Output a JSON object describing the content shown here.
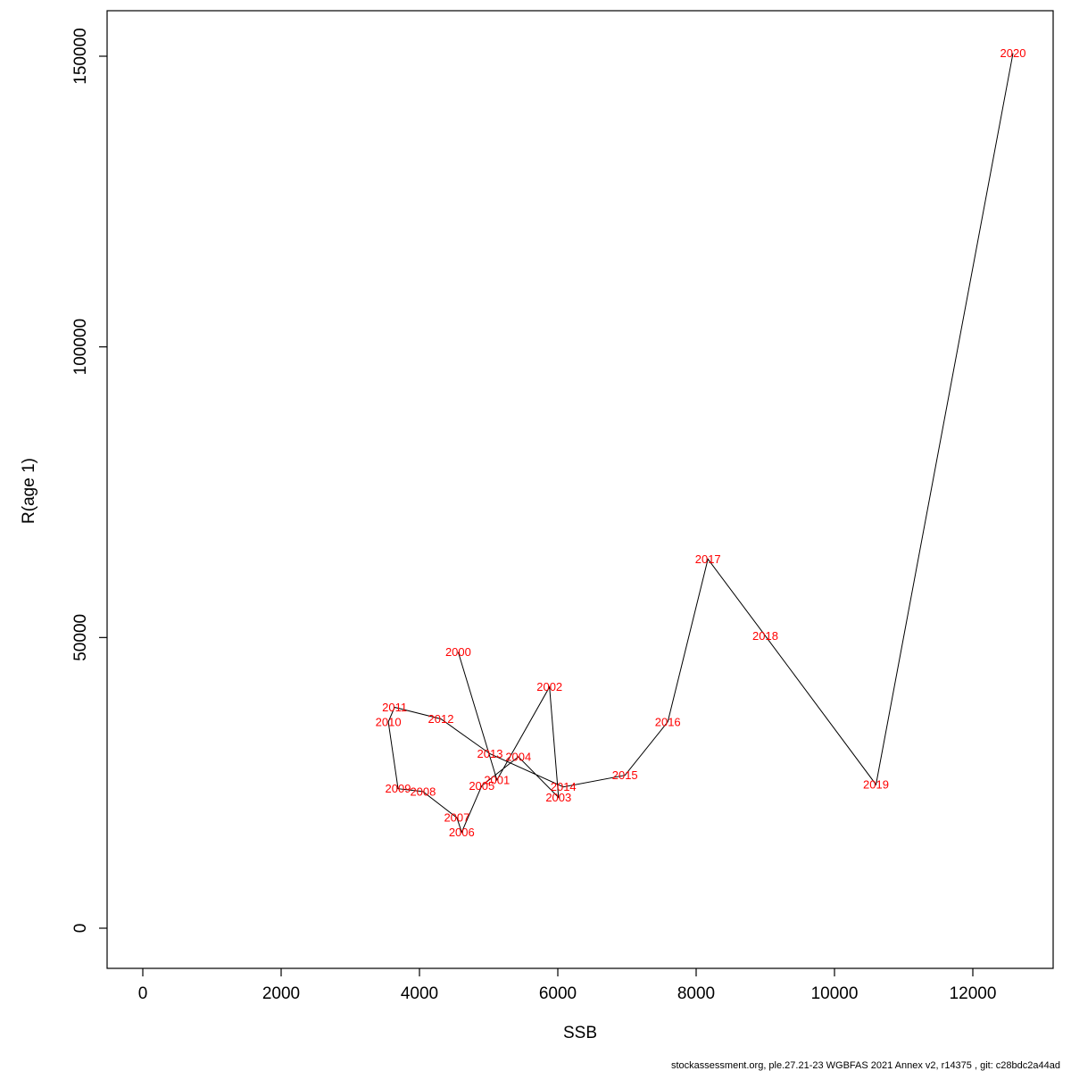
{
  "caption": "stockassessment.org, ple.27.21-23 WGBFAS 2021 Annex v2, r14375 , git: c28bdc2a44ad",
  "chart_data": {
    "type": "line",
    "title": "",
    "xlabel": "SSB",
    "ylabel": "R(age 1)",
    "xlim": [
      0,
      13000
    ],
    "ylim": [
      0,
      155000
    ],
    "x_ticks": [
      0,
      2000,
      4000,
      6000,
      8000,
      10000,
      12000
    ],
    "y_ticks": [
      0,
      50000,
      100000,
      150000
    ],
    "grid": "off",
    "legend": "none",
    "line_color": "#000000",
    "label_color": "#ff0000",
    "points": [
      {
        "year": "2000",
        "ssb": 4560,
        "r": 47500
      },
      {
        "year": "2001",
        "ssb": 5120,
        "r": 25500
      },
      {
        "year": "2002",
        "ssb": 5880,
        "r": 41500
      },
      {
        "year": "2003",
        "ssb": 6010,
        "r": 22500
      },
      {
        "year": "2004",
        "ssb": 5430,
        "r": 29500
      },
      {
        "year": "2005",
        "ssb": 4900,
        "r": 24500
      },
      {
        "year": "2006",
        "ssb": 4610,
        "r": 16500
      },
      {
        "year": "2007",
        "ssb": 4540,
        "r": 19000
      },
      {
        "year": "2008",
        "ssb": 4050,
        "r": 23500
      },
      {
        "year": "2009",
        "ssb": 3690,
        "r": 24000
      },
      {
        "year": "2010",
        "ssb": 3550,
        "r": 35500
      },
      {
        "year": "2011",
        "ssb": 3640,
        "r": 38000
      },
      {
        "year": "2012",
        "ssb": 4310,
        "r": 36000
      },
      {
        "year": "2013",
        "ssb": 5020,
        "r": 30000
      },
      {
        "year": "2014",
        "ssb": 6080,
        "r": 24300
      },
      {
        "year": "2015",
        "ssb": 6970,
        "r": 26300
      },
      {
        "year": "2016",
        "ssb": 7590,
        "r": 35500
      },
      {
        "year": "2017",
        "ssb": 8170,
        "r": 63500
      },
      {
        "year": "2018",
        "ssb": 9000,
        "r": 50300
      },
      {
        "year": "2019",
        "ssb": 10600,
        "r": 24700
      },
      {
        "year": "2020",
        "ssb": 12580,
        "r": 150500
      }
    ]
  }
}
